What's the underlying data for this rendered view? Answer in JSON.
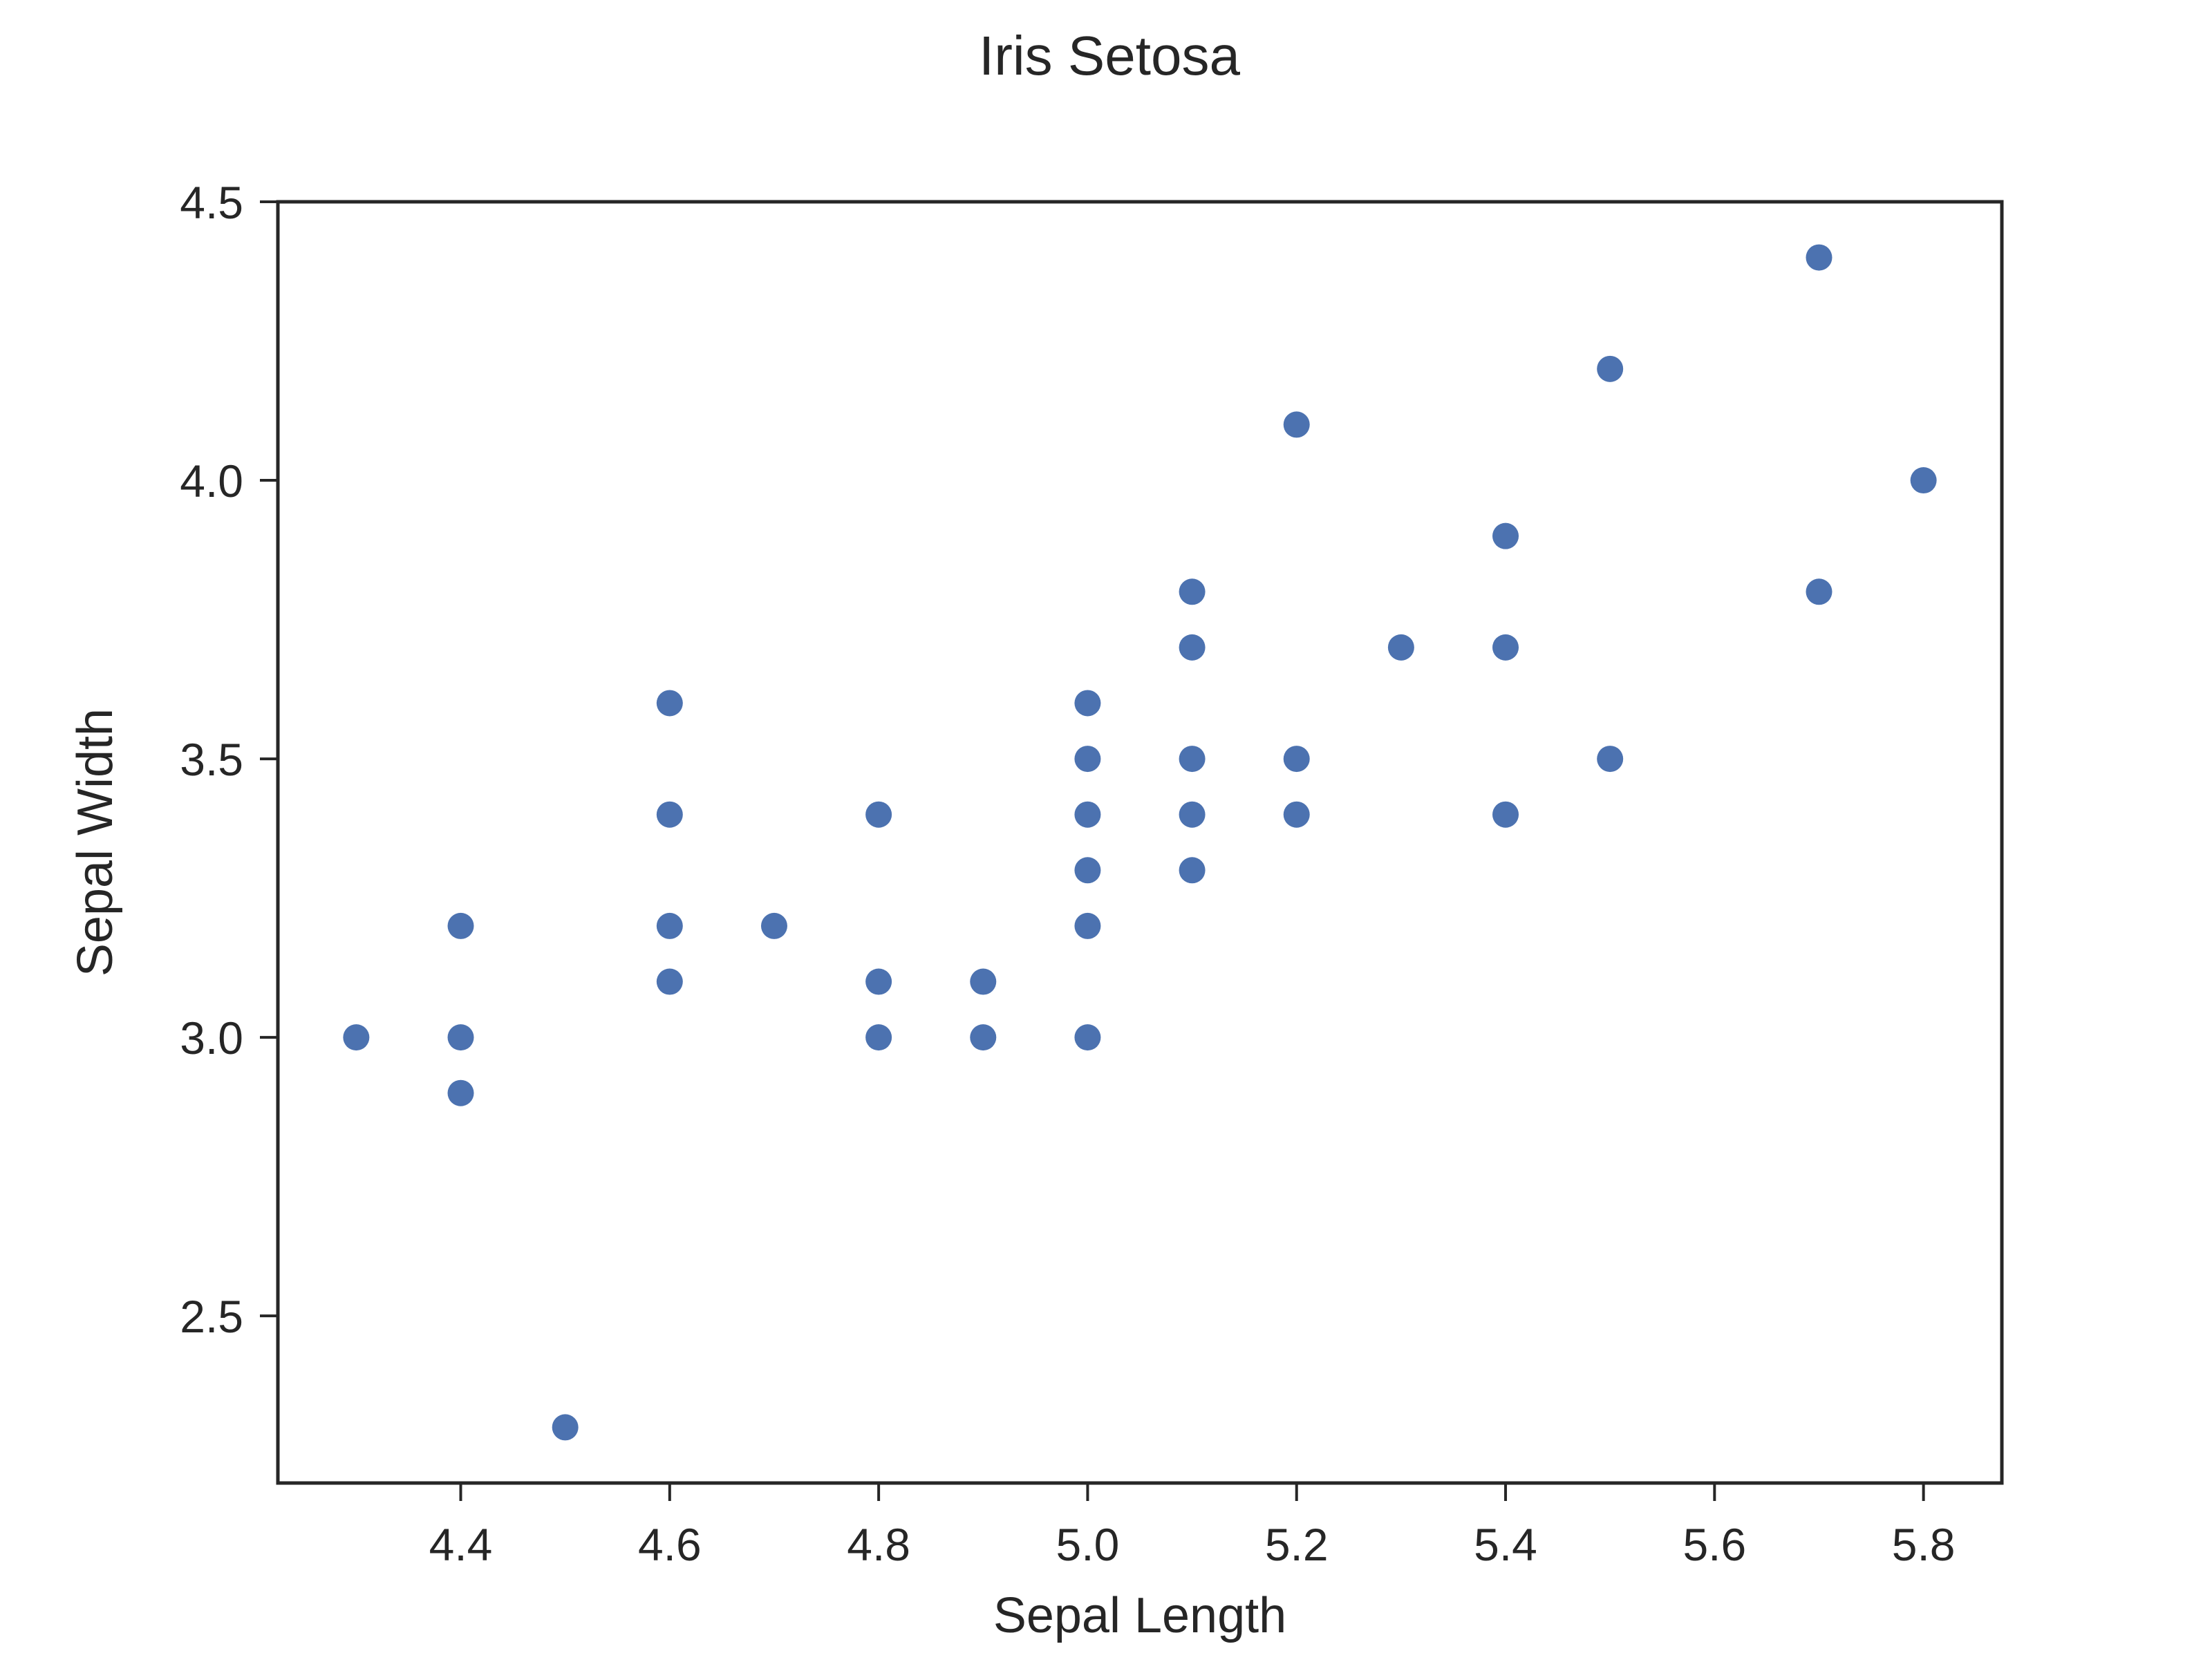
{
  "chart_data": {
    "type": "scatter",
    "title": "Iris Setosa",
    "xlabel": "Sepal Length",
    "ylabel": "Sepal Width",
    "xlim": [
      4.225,
      5.875
    ],
    "ylim": [
      2.2,
      4.5
    ],
    "xticks": [
      4.4,
      4.6,
      4.8,
      5.0,
      5.2,
      5.4,
      5.6,
      5.8
    ],
    "xtick_labels": [
      "4.4",
      "4.6",
      "4.8",
      "5.0",
      "5.2",
      "5.4",
      "5.6",
      "5.8"
    ],
    "yticks": [
      2.5,
      3.0,
      3.5,
      4.0,
      4.5
    ],
    "ytick_labels": [
      "2.5",
      "3.0",
      "3.5",
      "4.0",
      "4.5"
    ],
    "grid": false,
    "marker_color": "#4c72b0",
    "axis_color": "#262626",
    "points": [
      {
        "x": 4.3,
        "y": 3.0
      },
      {
        "x": 4.4,
        "y": 3.2
      },
      {
        "x": 4.4,
        "y": 3.0
      },
      {
        "x": 4.4,
        "y": 2.9
      },
      {
        "x": 4.5,
        "y": 2.3
      },
      {
        "x": 4.6,
        "y": 3.6
      },
      {
        "x": 4.6,
        "y": 3.4
      },
      {
        "x": 4.6,
        "y": 3.2
      },
      {
        "x": 4.6,
        "y": 3.1
      },
      {
        "x": 4.7,
        "y": 3.2
      },
      {
        "x": 4.8,
        "y": 3.4
      },
      {
        "x": 4.8,
        "y": 3.1
      },
      {
        "x": 4.8,
        "y": 3.0
      },
      {
        "x": 4.9,
        "y": 3.1
      },
      {
        "x": 4.9,
        "y": 3.0
      },
      {
        "x": 5.0,
        "y": 3.6
      },
      {
        "x": 5.0,
        "y": 3.5
      },
      {
        "x": 5.0,
        "y": 3.4
      },
      {
        "x": 5.0,
        "y": 3.3
      },
      {
        "x": 5.0,
        "y": 3.2
      },
      {
        "x": 5.0,
        "y": 3.0
      },
      {
        "x": 5.1,
        "y": 3.8
      },
      {
        "x": 5.1,
        "y": 3.7
      },
      {
        "x": 5.1,
        "y": 3.5
      },
      {
        "x": 5.1,
        "y": 3.4
      },
      {
        "x": 5.1,
        "y": 3.3
      },
      {
        "x": 5.2,
        "y": 4.1
      },
      {
        "x": 5.2,
        "y": 3.5
      },
      {
        "x": 5.2,
        "y": 3.4
      },
      {
        "x": 5.3,
        "y": 3.7
      },
      {
        "x": 5.4,
        "y": 3.9
      },
      {
        "x": 5.4,
        "y": 3.7
      },
      {
        "x": 5.4,
        "y": 3.4
      },
      {
        "x": 5.5,
        "y": 4.2
      },
      {
        "x": 5.5,
        "y": 3.5
      },
      {
        "x": 5.7,
        "y": 4.4
      },
      {
        "x": 5.7,
        "y": 3.8
      },
      {
        "x": 5.8,
        "y": 4.0
      }
    ]
  }
}
